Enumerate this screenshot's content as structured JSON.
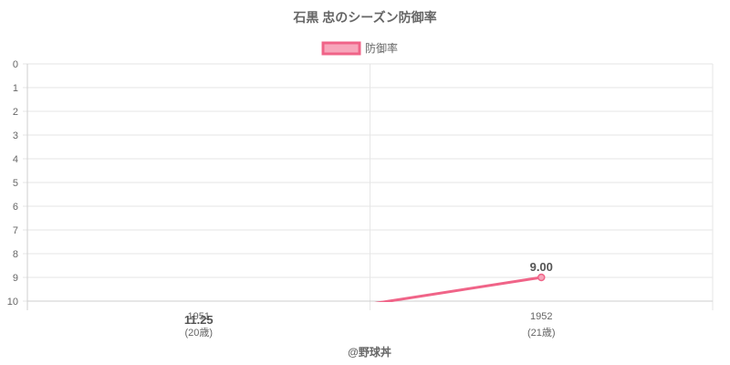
{
  "chart_data": {
    "type": "line",
    "title": "石黒 忠のシーズン防御率",
    "legend": {
      "position": "top",
      "label": "防御率"
    },
    "x": [
      {
        "year": "1951",
        "age": "(20歳)"
      },
      {
        "year": "1952",
        "age": "(21歳)"
      }
    ],
    "series": [
      {
        "name": "防御率",
        "values": [
          11.25,
          9.0
        ],
        "labels": [
          "11.25",
          "9.00"
        ]
      }
    ],
    "ylim": [
      0,
      10
    ],
    "y_reversed": true,
    "y_ticks": [
      "0",
      "1",
      "2",
      "3",
      "4",
      "5",
      "6",
      "7",
      "8",
      "9",
      "10"
    ],
    "grid": true,
    "colors": {
      "line": "#f06488",
      "point_fill": "#f7a6bb",
      "grid": "#e6e6e6"
    }
  },
  "footer": "@野球丼"
}
